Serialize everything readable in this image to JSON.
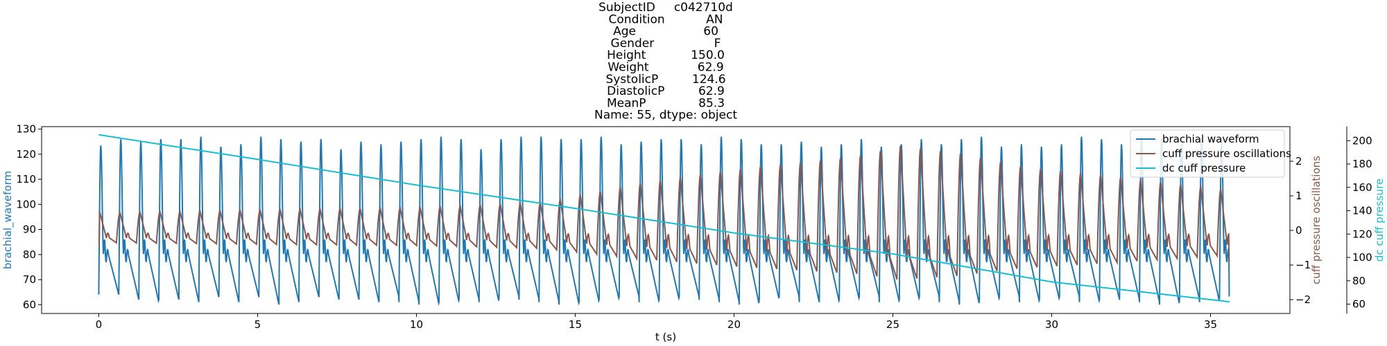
{
  "chart_data": {
    "type": "line",
    "title_lines": [
      "SubjectID     c042710d",
      "Condition           AN",
      "Age                  60",
      "Gender                F",
      "Height            150.0",
      "Weight             62.9",
      "SystolicP         124.6",
      "DiastolicP         62.9",
      "MeanP              85.3",
      "Name: 55, dtype: object"
    ],
    "xlabel": "t (s)",
    "xlim": [
      -1.8,
      37.5
    ],
    "xticks": [
      0,
      5,
      10,
      15,
      20,
      25,
      30,
      35
    ],
    "y_left": {
      "label": "brachial_waveform",
      "color": "#1f77b4",
      "lim": [
        56.5,
        131
      ],
      "ticks": [
        60,
        70,
        80,
        90,
        100,
        110,
        120,
        130
      ]
    },
    "y_right1": {
      "label": "cuff pressure oscillations",
      "color": "#8c564b",
      "lim": [
        -2.4,
        3.0
      ],
      "ticks": [
        -2,
        -1,
        0,
        1,
        2
      ]
    },
    "y_right2": {
      "label": "dc cuff pressure",
      "color": "#17becf",
      "lim": [
        52,
        212
      ],
      "ticks": [
        60,
        80,
        100,
        120,
        140,
        160,
        180,
        200
      ]
    },
    "legend": {
      "position": "top-right",
      "entries": [
        "brachial waveform",
        "cuff pressure oscillations",
        "dc cuff pressure"
      ]
    },
    "series": [
      {
        "name": "brachial waveform",
        "axis": "left",
        "color": "#1f77b4",
        "t_start": 0.0,
        "t_end": 35.6,
        "beat_count": 57,
        "peak_values": [
          123.5,
          126,
          125,
          126,
          126,
          127,
          123,
          124,
          127,
          126,
          125,
          126,
          122,
          125,
          124,
          125,
          126,
          127,
          126,
          122,
          126,
          127,
          127,
          126,
          126,
          127,
          124,
          125,
          126,
          126,
          124,
          127,
          126,
          124,
          124,
          125,
          123,
          124,
          126,
          123,
          124,
          126,
          124,
          126,
          127,
          123,
          124,
          123,
          124,
          127,
          126,
          124,
          127,
          126,
          124,
          126,
          125
        ],
        "trough_values": [
          64,
          62,
          61,
          62,
          61,
          63,
          61,
          63,
          60,
          61,
          63,
          62,
          62,
          61,
          63,
          61,
          60,
          61,
          62,
          61,
          63,
          62,
          61,
          60,
          61,
          62,
          63,
          61,
          62,
          63,
          62,
          61,
          60,
          62,
          63,
          61,
          61,
          62,
          63,
          61,
          62,
          63,
          61,
          60,
          62,
          63,
          61,
          62,
          63,
          61,
          62,
          62,
          61,
          60,
          62,
          61,
          63
        ],
        "notch_value": 82,
        "end_value": 63.5
      },
      {
        "name": "cuff pressure oscillations",
        "axis": "right1",
        "color": "#8c564b",
        "t_start": 0.0,
        "t_end": 35.6,
        "envelope_t": [
          0,
          3,
          6,
          10,
          14,
          17,
          20,
          22,
          24,
          25.2,
          27,
          29,
          32,
          35.6
        ],
        "envelope_amp": [
          0.55,
          0.6,
          0.65,
          0.7,
          0.85,
          1.4,
          1.8,
          2.0,
          2.2,
          2.5,
          2.3,
          1.9,
          1.6,
          1.2
        ],
        "baseline": -0.05,
        "start_value": -0.4,
        "end_value": -0.9
      },
      {
        "name": "dc cuff pressure",
        "axis": "right2",
        "color": "#17becf",
        "t": [
          0,
          5,
          10,
          15,
          20,
          25,
          30,
          33,
          35.6
        ],
        "values": [
          205,
          184,
          162,
          142,
          121,
          103,
          79,
          70,
          62
        ]
      }
    ]
  }
}
